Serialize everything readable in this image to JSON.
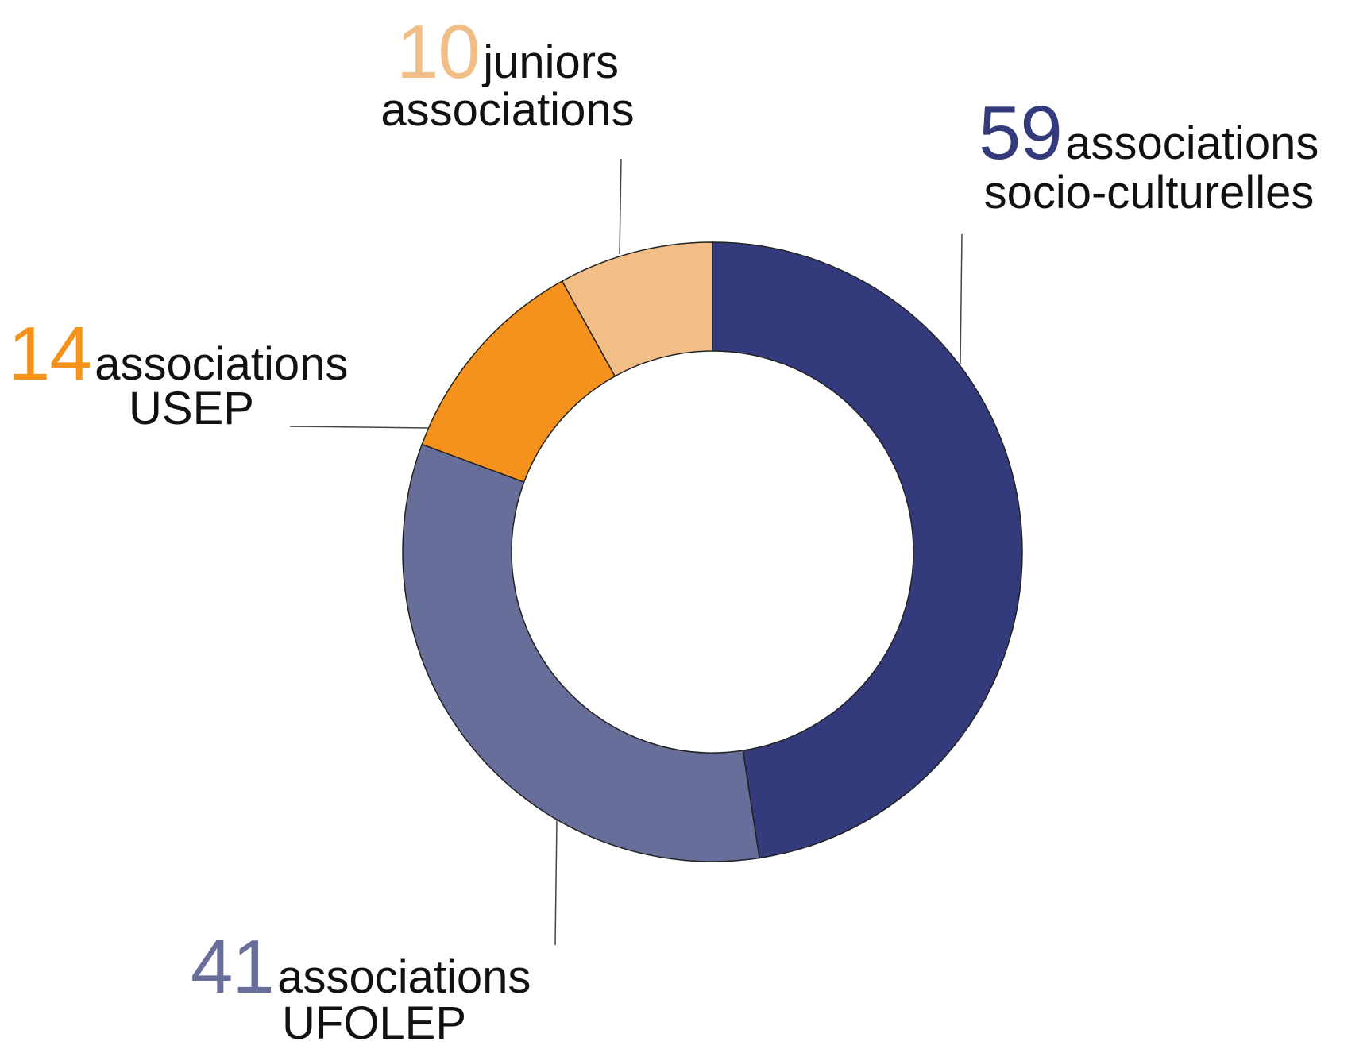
{
  "chart_data": {
    "type": "pie",
    "donut": true,
    "start_angle_deg": 0,
    "direction": "clockwise",
    "slices": [
      {
        "value": 59,
        "number": "59",
        "text_line1": "associations",
        "text_line2": "socio-culturelles",
        "color": "#343B7C"
      },
      {
        "value": 41,
        "number": "41",
        "text_line1": "associations",
        "text_line2": "UFOLEP",
        "color": "#676E99"
      },
      {
        "value": 14,
        "number": "14",
        "text_line1": "associations",
        "text_line2": "USEP",
        "color": "#F5921E"
      },
      {
        "value": 10,
        "number": "10",
        "text_line1": "juniors",
        "text_line2": "associations",
        "color": "#F2BE87"
      }
    ],
    "legend": "none",
    "grid": false
  }
}
